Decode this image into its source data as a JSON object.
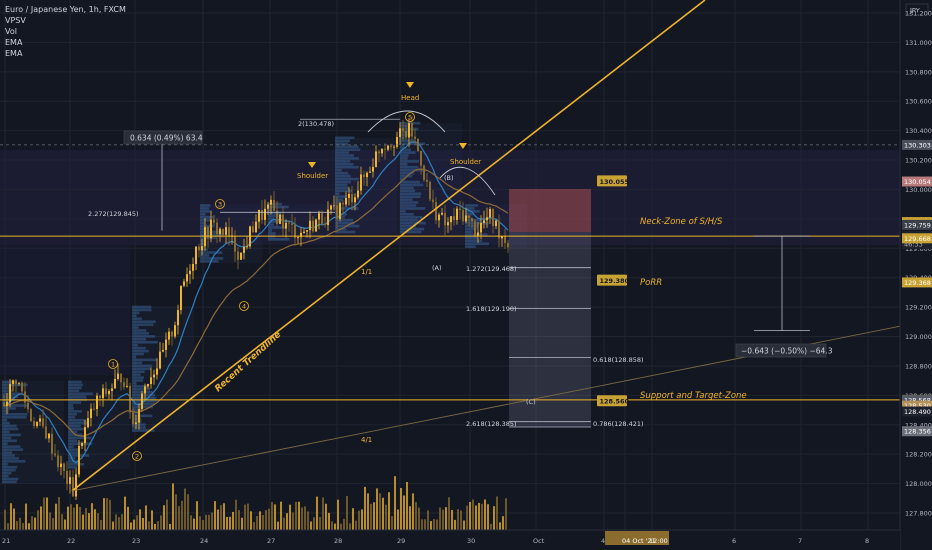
{
  "legend": {
    "symbol": "Euro / Japanese Yen, 1h, FXCM",
    "indicators": [
      "VPSV",
      "Vol",
      "EMA",
      "EMA"
    ]
  },
  "chart_data": {
    "type": "candlestick",
    "currency": "JPY",
    "ylim": [
      127.64,
      131.31
    ],
    "y_ticks": [
      127.8,
      128.0,
      128.2,
      128.4,
      128.6,
      128.8,
      129.0,
      129.2,
      129.4,
      129.6,
      129.8,
      130.0,
      130.2,
      130.4,
      130.6,
      130.8,
      131.0,
      131.2
    ],
    "x_ticks": [
      "21",
      "22",
      "23",
      "24",
      "27",
      "28",
      "29",
      "30",
      "Oct",
      "4",
      "04 Oct '21",
      "12:00",
      "6",
      "7",
      "8"
    ],
    "price_badges": [
      {
        "value": "130.303",
        "color": "#4a4f5c"
      },
      {
        "value": "130.054",
        "color": "#b87a7a"
      },
      {
        "value": "129.778",
        "color": "#c8a233"
      },
      {
        "value": "129.759",
        "color": "#3b3f4a"
      },
      {
        "value": "129.683",
        "extra": "46:33",
        "color": "#1e222d"
      },
      {
        "value": "129.668",
        "color": "#c8a233"
      },
      {
        "value": "129.368",
        "color": "#c8a233"
      },
      {
        "value": "128.569",
        "color": "#c8a233"
      },
      {
        "value": "128.568",
        "color": "#555a66"
      },
      {
        "value": "128.530",
        "color": "#b39259"
      },
      {
        "value": "128.490",
        "color": "#1e222d"
      },
      {
        "value": "128.356",
        "color": "#6b6f7a"
      }
    ],
    "annotations": {
      "measure_top": "0.634 (0.49%) 63.4",
      "measure_bottom": "−0.643 (−0.50%) −64.3",
      "head": "Head",
      "shoulder_left": "Shoulder",
      "shoulder_right": "Shoulder",
      "neck_zone": "Neck-Zone of S/H/S",
      "porr": "PoRR",
      "support_zone": "Support and Target-Zone",
      "trendline": "Recent Trendline",
      "ratio_1_1": "1/1",
      "ratio_4_1": "4/1",
      "fib_2": "2(130.478)",
      "fib_2272": "2.272(129.845)",
      "fib_1272": "1.272(129.468)",
      "fib_1618": "1.618(129.190)",
      "fib_0618": "0.618(128.858)",
      "fib_2618": "2.618(128.385)",
      "fib_0786": "0.786(128.421)",
      "wave_A": "(A)",
      "wave_B": "(B)",
      "wave_C": "(C)",
      "wave_labels": [
        "1",
        "2",
        "3",
        "4",
        "5"
      ],
      "target_top": "130.055",
      "target_mid": "129.380",
      "target_low": "128.560"
    },
    "colors": {
      "background": "#131722",
      "bull": "#f0b429",
      "bear": "#8a6d2e",
      "trendline": "#f0b429",
      "ema_fast": "#2f7fc1",
      "ema_slow": "#8d6a3a"
    }
  }
}
